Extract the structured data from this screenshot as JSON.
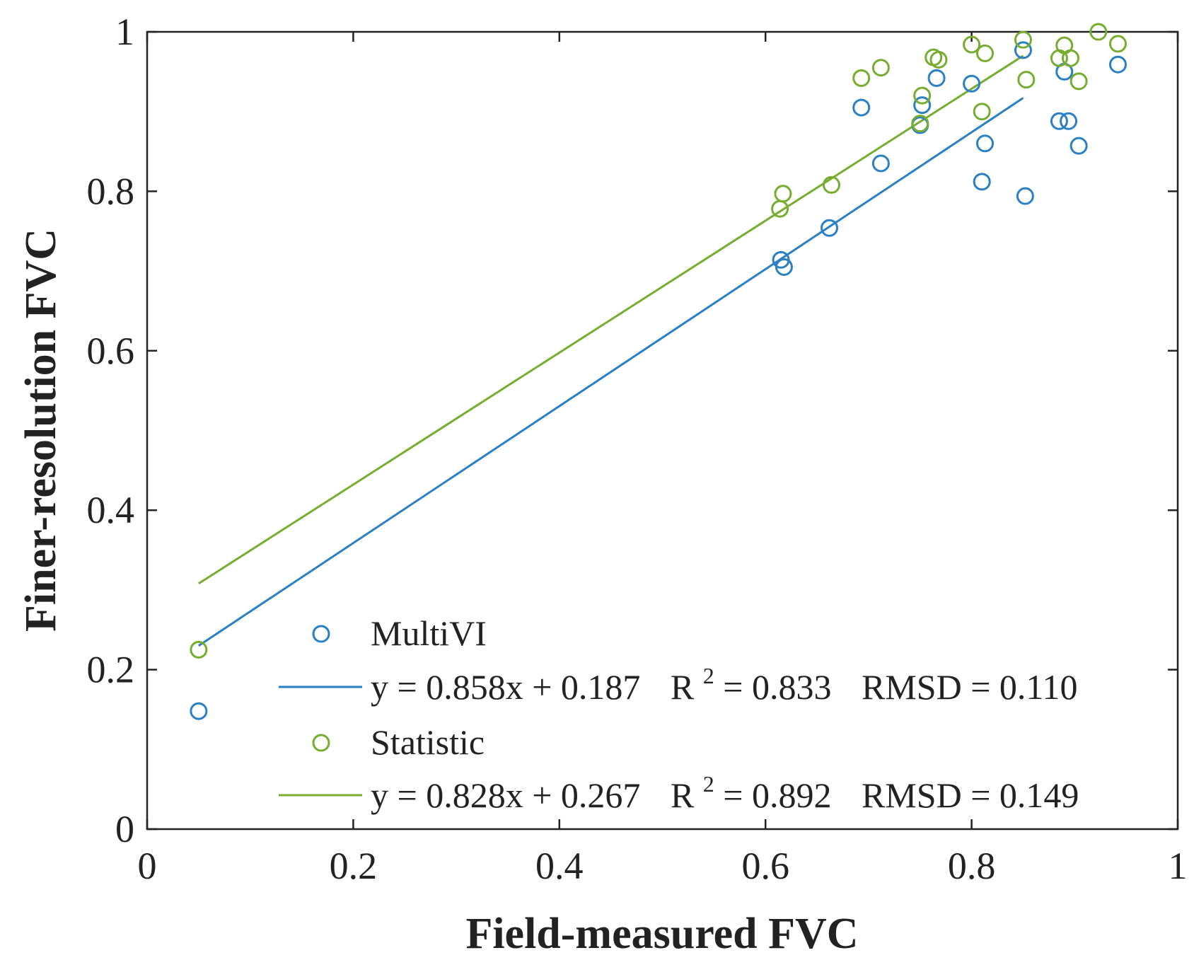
{
  "chart_data": {
    "type": "scatter",
    "xlabel": "Field-measured FVC",
    "ylabel": "Finer-resolution FVC",
    "xlim": [
      0,
      1
    ],
    "ylim": [
      0,
      1
    ],
    "xticks": [
      "0",
      "0.2",
      "0.4",
      "0.6",
      "0.8",
      "1"
    ],
    "yticks": [
      "0",
      "0.2",
      "0.4",
      "0.6",
      "0.8",
      "1"
    ],
    "grid": false,
    "legend_position": "bottom-right",
    "series": [
      {
        "name": "MultiVI",
        "color": "#2a7fc5",
        "fit_label": "y = 0.858x + 0.187",
        "r2_label": "R",
        "r2_sup": "2",
        "r2_value": " = 0.833",
        "rmsd_label": "RMSD = 0.110",
        "fit_line": {
          "x": [
            0.05,
            0.85
          ],
          "y": [
            0.23,
            0.917
          ]
        },
        "points": [
          {
            "x": 0.05,
            "y": 0.148
          },
          {
            "x": 0.615,
            "y": 0.714
          },
          {
            "x": 0.618,
            "y": 0.705
          },
          {
            "x": 0.662,
            "y": 0.754
          },
          {
            "x": 0.693,
            "y": 0.905
          },
          {
            "x": 0.712,
            "y": 0.835
          },
          {
            "x": 0.75,
            "y": 0.883
          },
          {
            "x": 0.752,
            "y": 0.908
          },
          {
            "x": 0.766,
            "y": 0.942
          },
          {
            "x": 0.8,
            "y": 0.935
          },
          {
            "x": 0.81,
            "y": 0.812
          },
          {
            "x": 0.813,
            "y": 0.86
          },
          {
            "x": 0.85,
            "y": 0.977
          },
          {
            "x": 0.852,
            "y": 0.794
          },
          {
            "x": 0.885,
            "y": 0.888
          },
          {
            "x": 0.89,
            "y": 0.95
          },
          {
            "x": 0.894,
            "y": 0.888
          },
          {
            "x": 0.904,
            "y": 0.857
          },
          {
            "x": 0.942,
            "y": 0.959
          }
        ]
      },
      {
        "name": "Statistic",
        "color": "#77ac30",
        "fit_label": "y = 0.828x + 0.267",
        "r2_label": "R",
        "r2_sup": "2",
        "r2_value": " = 0.892",
        "rmsd_label": "RMSD = 0.149",
        "fit_line": {
          "x": [
            0.05,
            0.85
          ],
          "y": [
            0.308,
            0.97
          ]
        },
        "points": [
          {
            "x": 0.05,
            "y": 0.225
          },
          {
            "x": 0.614,
            "y": 0.778
          },
          {
            "x": 0.617,
            "y": 0.797
          },
          {
            "x": 0.664,
            "y": 0.808
          },
          {
            "x": 0.693,
            "y": 0.942
          },
          {
            "x": 0.712,
            "y": 0.955
          },
          {
            "x": 0.75,
            "y": 0.885
          },
          {
            "x": 0.752,
            "y": 0.92
          },
          {
            "x": 0.763,
            "y": 0.968
          },
          {
            "x": 0.768,
            "y": 0.965
          },
          {
            "x": 0.8,
            "y": 0.984
          },
          {
            "x": 0.81,
            "y": 0.9
          },
          {
            "x": 0.813,
            "y": 0.973
          },
          {
            "x": 0.85,
            "y": 0.99
          },
          {
            "x": 0.853,
            "y": 0.94
          },
          {
            "x": 0.885,
            "y": 0.967
          },
          {
            "x": 0.89,
            "y": 0.983
          },
          {
            "x": 0.896,
            "y": 0.967
          },
          {
            "x": 0.904,
            "y": 0.938
          },
          {
            "x": 0.923,
            "y": 1.0
          },
          {
            "x": 0.942,
            "y": 0.985
          }
        ]
      }
    ]
  }
}
